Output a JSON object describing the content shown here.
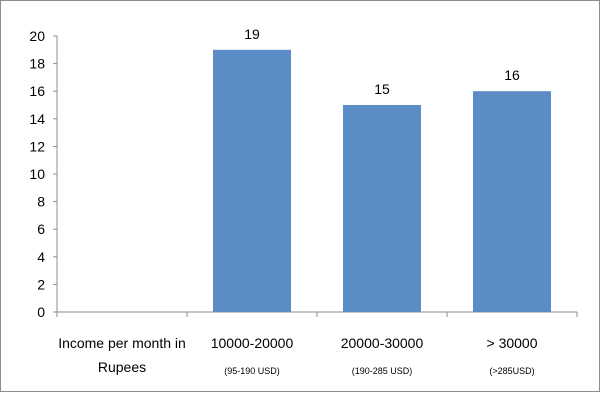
{
  "chart_data": {
    "type": "bar",
    "categories": [
      {
        "label": "Income per month in",
        "label2": "Rupees",
        "sub": ""
      },
      {
        "label": "10000-20000",
        "label2": "",
        "sub": "(95-190 USD)"
      },
      {
        "label": "20000-30000",
        "label2": "",
        "sub": "(190-285 USD)"
      },
      {
        "label": "> 30000",
        "label2": "",
        "sub": "(>285USD)"
      }
    ],
    "values": [
      null,
      19,
      15,
      16
    ],
    "data_labels": [
      "",
      "19",
      "15",
      "16"
    ],
    "ylim": [
      0,
      20
    ],
    "yticks": [
      0,
      2,
      4,
      6,
      8,
      10,
      12,
      14,
      16,
      18,
      20
    ],
    "grid": false,
    "legend": "none",
    "title": "",
    "xlabel": "",
    "ylabel": "",
    "colors": {
      "bar": "#5b8cc5",
      "axis": "#8c8c8c"
    }
  }
}
